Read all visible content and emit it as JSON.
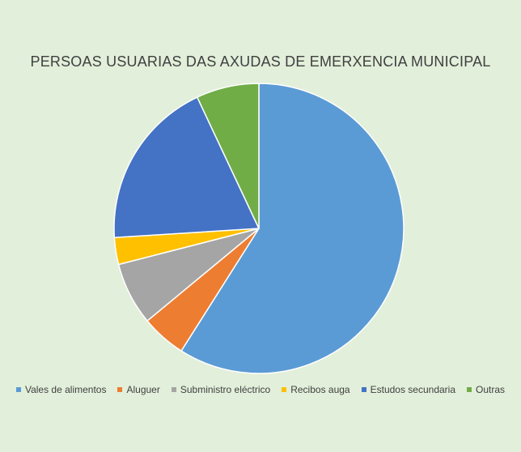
{
  "chart_data": {
    "type": "pie",
    "title": "PERSOAS USUARIAS DAS AXUDAS DE EMERXENCIA MUNICIPAL",
    "categories": [
      "Vales de alimentos",
      "Aluguer",
      "Subministro eléctrico",
      "Recibos auga",
      "Estudos secundaria",
      "Outras"
    ],
    "values": [
      59,
      5,
      7,
      3,
      19,
      7
    ],
    "colors": [
      "#5b9bd5",
      "#ed7d31",
      "#a5a5a5",
      "#ffc000",
      "#4472c4",
      "#70ad47"
    ],
    "legend_position": "bottom",
    "start_angle": "top, clockwise"
  }
}
